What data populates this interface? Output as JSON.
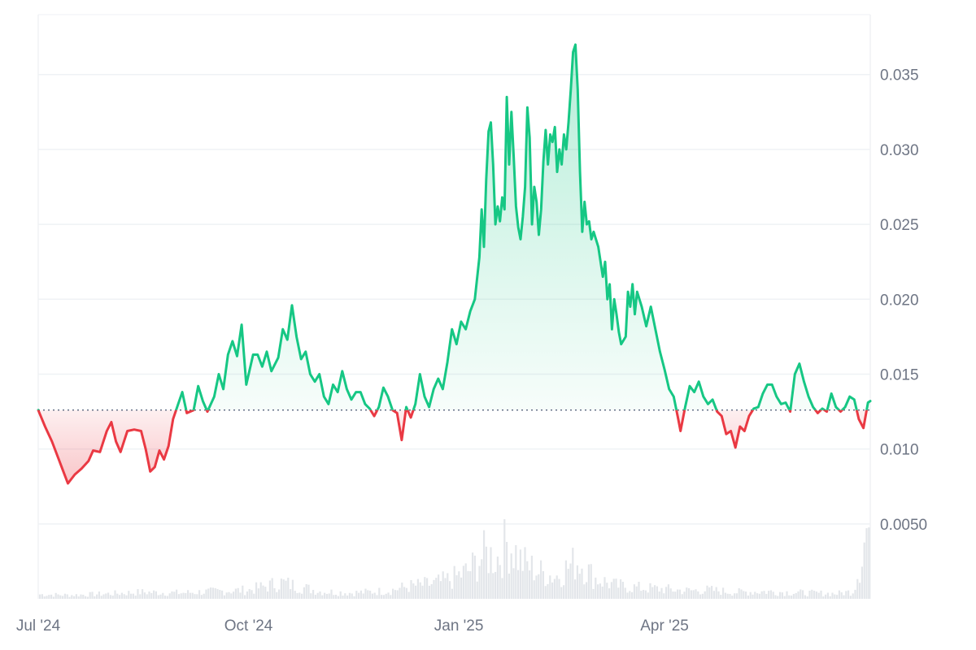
{
  "chart_data": {
    "type": "area",
    "title": "",
    "xlabel": "",
    "ylabel": "",
    "baseline": 0.0126,
    "ylim": [
      0.0,
      0.039
    ],
    "y_ticks": [
      {
        "value": 0.005,
        "label": "0.0050"
      },
      {
        "value": 0.01,
        "label": "0.010"
      },
      {
        "value": 0.015,
        "label": "0.015"
      },
      {
        "value": 0.02,
        "label": "0.020"
      },
      {
        "value": 0.025,
        "label": "0.025"
      },
      {
        "value": 0.03,
        "label": "0.030"
      },
      {
        "value": 0.035,
        "label": "0.035"
      }
    ],
    "x_range": [
      "2024-07-01",
      "2025-06-30"
    ],
    "x_ticks": [
      {
        "date": "2024-07-01",
        "label": "Jul '24"
      },
      {
        "date": "2024-10-01",
        "label": "Oct '24"
      },
      {
        "date": "2025-01-01",
        "label": "Jan '25"
      },
      {
        "date": "2025-04-01",
        "label": "Apr '25"
      }
    ],
    "grid": true,
    "colors": {
      "up": "#16c784",
      "down": "#ea3943",
      "up_fill": "#16c784",
      "down_fill": "#ea3943",
      "volume": "#e3e6ea",
      "grid": "#eff2f5",
      "baseline": "#58667e"
    },
    "series": [
      {
        "values": [
          [
            "2024-07-01",
            0.0126
          ],
          [
            "2024-07-04",
            0.0115
          ],
          [
            "2024-07-07",
            0.0105
          ],
          [
            "2024-07-10",
            0.0093
          ],
          [
            "2024-07-12",
            0.0085
          ],
          [
            "2024-07-14",
            0.0077
          ],
          [
            "2024-07-17",
            0.0083
          ],
          [
            "2024-07-20",
            0.0087
          ],
          [
            "2024-07-23",
            0.0092
          ],
          [
            "2024-07-25",
            0.0099
          ],
          [
            "2024-07-28",
            0.0098
          ],
          [
            "2024-07-31",
            0.0112
          ],
          [
            "2024-08-02",
            0.0118
          ],
          [
            "2024-08-04",
            0.0105
          ],
          [
            "2024-08-06",
            0.0098
          ],
          [
            "2024-08-09",
            0.0112
          ],
          [
            "2024-08-12",
            0.0113
          ],
          [
            "2024-08-15",
            0.0112
          ],
          [
            "2024-08-17",
            0.01
          ],
          [
            "2024-08-19",
            0.0085
          ],
          [
            "2024-08-21",
            0.0088
          ],
          [
            "2024-08-23",
            0.0099
          ],
          [
            "2024-08-25",
            0.0093
          ],
          [
            "2024-08-27",
            0.0102
          ],
          [
            "2024-08-29",
            0.012
          ],
          [
            "2024-08-31",
            0.0129
          ],
          [
            "2024-09-02",
            0.0138
          ],
          [
            "2024-09-04",
            0.0124
          ],
          [
            "2024-09-07",
            0.0126
          ],
          [
            "2024-09-09",
            0.0142
          ],
          [
            "2024-09-11",
            0.0132
          ],
          [
            "2024-09-13",
            0.0125
          ],
          [
            "2024-09-16",
            0.0135
          ],
          [
            "2024-09-18",
            0.015
          ],
          [
            "2024-09-20",
            0.014
          ],
          [
            "2024-09-22",
            0.0163
          ],
          [
            "2024-09-24",
            0.0172
          ],
          [
            "2024-09-26",
            0.0162
          ],
          [
            "2024-09-28",
            0.0183
          ],
          [
            "2024-09-30",
            0.0143
          ],
          [
            "2024-10-03",
            0.0163
          ],
          [
            "2024-10-05",
            0.0163
          ],
          [
            "2024-10-07",
            0.0155
          ],
          [
            "2024-10-09",
            0.0165
          ],
          [
            "2024-10-11",
            0.0152
          ],
          [
            "2024-10-14",
            0.0161
          ],
          [
            "2024-10-16",
            0.018
          ],
          [
            "2024-10-18",
            0.0173
          ],
          [
            "2024-10-20",
            0.0196
          ],
          [
            "2024-10-22",
            0.0175
          ],
          [
            "2024-10-24",
            0.016
          ],
          [
            "2024-10-26",
            0.0165
          ],
          [
            "2024-10-28",
            0.015
          ],
          [
            "2024-10-30",
            0.0145
          ],
          [
            "2024-11-01",
            0.015
          ],
          [
            "2024-11-03",
            0.0135
          ],
          [
            "2024-11-05",
            0.013
          ],
          [
            "2024-11-07",
            0.0143
          ],
          [
            "2024-11-09",
            0.0138
          ],
          [
            "2024-11-11",
            0.0152
          ],
          [
            "2024-11-13",
            0.014
          ],
          [
            "2024-11-15",
            0.0133
          ],
          [
            "2024-11-17",
            0.0138
          ],
          [
            "2024-11-19",
            0.0138
          ],
          [
            "2024-11-21",
            0.013
          ],
          [
            "2024-11-23",
            0.0127
          ],
          [
            "2024-11-25",
            0.0122
          ],
          [
            "2024-11-27",
            0.0128
          ],
          [
            "2024-11-29",
            0.0141
          ],
          [
            "2024-12-01",
            0.0135
          ],
          [
            "2024-12-03",
            0.0126
          ],
          [
            "2024-12-05",
            0.0124
          ],
          [
            "2024-12-07",
            0.0106
          ],
          [
            "2024-12-09",
            0.0128
          ],
          [
            "2024-12-11",
            0.0121
          ],
          [
            "2024-12-13",
            0.013
          ],
          [
            "2024-12-15",
            0.015
          ],
          [
            "2024-12-17",
            0.0135
          ],
          [
            "2024-12-19",
            0.0128
          ],
          [
            "2024-12-21",
            0.014
          ],
          [
            "2024-12-23",
            0.0147
          ],
          [
            "2024-12-25",
            0.014
          ],
          [
            "2024-12-27",
            0.0158
          ],
          [
            "2024-12-29",
            0.018
          ],
          [
            "2024-12-31",
            0.017
          ],
          [
            "2025-01-02",
            0.0185
          ],
          [
            "2025-01-04",
            0.018
          ],
          [
            "2025-01-06",
            0.0192
          ],
          [
            "2025-01-08",
            0.02
          ],
          [
            "2025-01-10",
            0.0228
          ],
          [
            "2025-01-11",
            0.026
          ],
          [
            "2025-01-12",
            0.0235
          ],
          [
            "2025-01-13",
            0.028
          ],
          [
            "2025-01-14",
            0.0312
          ],
          [
            "2025-01-15",
            0.0318
          ],
          [
            "2025-01-16",
            0.029
          ],
          [
            "2025-01-17",
            0.025
          ],
          [
            "2025-01-18",
            0.0262
          ],
          [
            "2025-01-19",
            0.0252
          ],
          [
            "2025-01-20",
            0.0268
          ],
          [
            "2025-01-21",
            0.026
          ],
          [
            "2025-01-22",
            0.0335
          ],
          [
            "2025-01-23",
            0.029
          ],
          [
            "2025-01-24",
            0.0325
          ],
          [
            "2025-01-25",
            0.0295
          ],
          [
            "2025-01-26",
            0.0262
          ],
          [
            "2025-01-27",
            0.0248
          ],
          [
            "2025-01-28",
            0.024
          ],
          [
            "2025-01-29",
            0.0255
          ],
          [
            "2025-01-30",
            0.0275
          ],
          [
            "2025-01-31",
            0.0328
          ],
          [
            "2025-02-01",
            0.0308
          ],
          [
            "2025-02-02",
            0.025
          ],
          [
            "2025-02-03",
            0.0275
          ],
          [
            "2025-02-04",
            0.0265
          ],
          [
            "2025-02-05",
            0.0243
          ],
          [
            "2025-02-06",
            0.026
          ],
          [
            "2025-02-07",
            0.0292
          ],
          [
            "2025-02-08",
            0.0313
          ],
          [
            "2025-02-09",
            0.029
          ],
          [
            "2025-02-10",
            0.031
          ],
          [
            "2025-02-11",
            0.0305
          ],
          [
            "2025-02-12",
            0.0315
          ],
          [
            "2025-02-13",
            0.0285
          ],
          [
            "2025-02-14",
            0.03
          ],
          [
            "2025-02-15",
            0.029
          ],
          [
            "2025-02-16",
            0.031
          ],
          [
            "2025-02-17",
            0.03
          ],
          [
            "2025-02-18",
            0.0318
          ],
          [
            "2025-02-19",
            0.034
          ],
          [
            "2025-02-20",
            0.0365
          ],
          [
            "2025-02-21",
            0.037
          ],
          [
            "2025-02-22",
            0.034
          ],
          [
            "2025-02-23",
            0.0285
          ],
          [
            "2025-02-24",
            0.0245
          ],
          [
            "2025-02-25",
            0.0265
          ],
          [
            "2025-02-26",
            0.025
          ],
          [
            "2025-02-27",
            0.0252
          ],
          [
            "2025-02-28",
            0.024
          ],
          [
            "2025-03-01",
            0.0245
          ],
          [
            "2025-03-03",
            0.0235
          ],
          [
            "2025-03-05",
            0.0215
          ],
          [
            "2025-03-06",
            0.0225
          ],
          [
            "2025-03-07",
            0.02
          ],
          [
            "2025-03-08",
            0.021
          ],
          [
            "2025-03-09",
            0.018
          ],
          [
            "2025-03-10",
            0.02
          ],
          [
            "2025-03-11",
            0.019
          ],
          [
            "2025-03-12",
            0.0178
          ],
          [
            "2025-03-13",
            0.017
          ],
          [
            "2025-03-15",
            0.0175
          ],
          [
            "2025-03-16",
            0.0205
          ],
          [
            "2025-03-17",
            0.0195
          ],
          [
            "2025-03-18",
            0.021
          ],
          [
            "2025-03-19",
            0.019
          ],
          [
            "2025-03-20",
            0.0205
          ],
          [
            "2025-03-22",
            0.0195
          ],
          [
            "2025-03-24",
            0.0182
          ],
          [
            "2025-03-26",
            0.0195
          ],
          [
            "2025-03-28",
            0.018
          ],
          [
            "2025-03-30",
            0.0165
          ],
          [
            "2025-04-01",
            0.0153
          ],
          [
            "2025-04-03",
            0.014
          ],
          [
            "2025-04-05",
            0.0135
          ],
          [
            "2025-04-07",
            0.012
          ],
          [
            "2025-04-08",
            0.0112
          ],
          [
            "2025-04-10",
            0.0128
          ],
          [
            "2025-04-12",
            0.0142
          ],
          [
            "2025-04-14",
            0.0138
          ],
          [
            "2025-04-16",
            0.0145
          ],
          [
            "2025-04-18",
            0.0135
          ],
          [
            "2025-04-20",
            0.013
          ],
          [
            "2025-04-22",
            0.0133
          ],
          [
            "2025-04-24",
            0.0125
          ],
          [
            "2025-04-26",
            0.0122
          ],
          [
            "2025-04-28",
            0.011
          ],
          [
            "2025-04-30",
            0.0112
          ],
          [
            "2025-05-02",
            0.0101
          ],
          [
            "2025-05-04",
            0.0115
          ],
          [
            "2025-05-06",
            0.0112
          ],
          [
            "2025-05-08",
            0.0122
          ],
          [
            "2025-05-10",
            0.0127
          ],
          [
            "2025-05-12",
            0.0128
          ],
          [
            "2025-05-14",
            0.0137
          ],
          [
            "2025-05-16",
            0.0143
          ],
          [
            "2025-05-18",
            0.0143
          ],
          [
            "2025-05-20",
            0.0135
          ],
          [
            "2025-05-22",
            0.013
          ],
          [
            "2025-05-24",
            0.0131
          ],
          [
            "2025-05-26",
            0.0125
          ],
          [
            "2025-05-28",
            0.015
          ],
          [
            "2025-05-30",
            0.0157
          ],
          [
            "2025-06-01",
            0.0145
          ],
          [
            "2025-06-03",
            0.0135
          ],
          [
            "2025-06-05",
            0.0128
          ],
          [
            "2025-06-07",
            0.0124
          ],
          [
            "2025-06-09",
            0.0127
          ],
          [
            "2025-06-11",
            0.0125
          ],
          [
            "2025-06-13",
            0.0137
          ],
          [
            "2025-06-15",
            0.0128
          ],
          [
            "2025-06-17",
            0.0125
          ],
          [
            "2025-06-19",
            0.0128
          ],
          [
            "2025-06-21",
            0.0135
          ],
          [
            "2025-06-23",
            0.0133
          ],
          [
            "2025-06-25",
            0.012
          ],
          [
            "2025-06-27",
            0.0114
          ],
          [
            "2025-06-29",
            0.0131
          ],
          [
            "2025-06-30",
            0.0132
          ]
        ]
      }
    ],
    "volume": {
      "values": [
        [
          "2024-07-01",
          0.06
        ],
        [
          "2024-07-15",
          0.05
        ],
        [
          "2024-08-01",
          0.07
        ],
        [
          "2024-08-15",
          0.09
        ],
        [
          "2024-09-01",
          0.08
        ],
        [
          "2024-09-15",
          0.1
        ],
        [
          "2024-10-01",
          0.12
        ],
        [
          "2024-10-15",
          0.22
        ],
        [
          "2024-11-01",
          0.1
        ],
        [
          "2024-11-15",
          0.08
        ],
        [
          "2024-12-01",
          0.11
        ],
        [
          "2024-12-10",
          0.17
        ],
        [
          "2024-12-20",
          0.2
        ],
        [
          "2024-12-28",
          0.26
        ],
        [
          "2025-01-05",
          0.38
        ],
        [
          "2025-01-12",
          0.6
        ],
        [
          "2025-01-18",
          0.55
        ],
        [
          "2025-01-22",
          0.78
        ],
        [
          "2025-01-28",
          0.5
        ],
        [
          "2025-02-05",
          0.36
        ],
        [
          "2025-02-12",
          0.3
        ],
        [
          "2025-02-18",
          0.44
        ],
        [
          "2025-02-22",
          0.52
        ],
        [
          "2025-03-01",
          0.28
        ],
        [
          "2025-03-10",
          0.18
        ],
        [
          "2025-03-20",
          0.15
        ],
        [
          "2025-04-01",
          0.13
        ],
        [
          "2025-04-10",
          0.11
        ],
        [
          "2025-04-20",
          0.12
        ],
        [
          "2025-05-01",
          0.09
        ],
        [
          "2025-05-15",
          0.1
        ],
        [
          "2025-06-01",
          0.08
        ],
        [
          "2025-06-15",
          0.07
        ],
        [
          "2025-06-22",
          0.1
        ],
        [
          "2025-06-25",
          0.45
        ],
        [
          "2025-06-28",
          0.92
        ],
        [
          "2025-06-30",
          0.95
        ]
      ]
    }
  }
}
